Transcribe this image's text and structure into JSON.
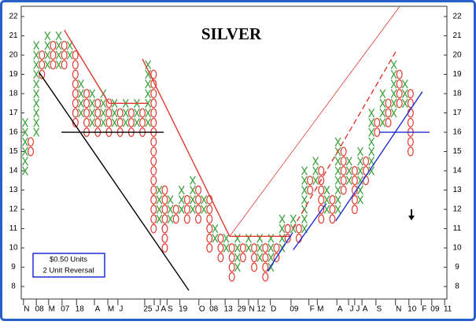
{
  "chart_data": {
    "type": "point-and-figure",
    "title": "SILVER",
    "box_size_label": "$0.50 Units",
    "reversal_label": "2 Unit Reversal",
    "box_size": 0.5,
    "x_color": "#3fa33f",
    "o_color": "#e0392f",
    "xlim": [
      -0.7,
      75.5
    ],
    "ylim": [
      7.35,
      22.53
    ],
    "yticks": [
      8,
      9,
      10,
      11,
      12,
      13,
      14,
      15,
      16,
      17,
      18,
      19,
      20,
      21,
      22
    ],
    "xticks": [
      {
        "value": -0.3,
        "label": "N"
      },
      {
        "value": 2,
        "label": "08"
      },
      {
        "value": 4.2,
        "label": "M"
      },
      {
        "value": 6.6,
        "label": "07"
      },
      {
        "value": 9.2,
        "label": "18"
      },
      {
        "value": 12.4,
        "label": "A"
      },
      {
        "value": 14.8,
        "label": "M"
      },
      {
        "value": 16.6,
        "label": "J"
      },
      {
        "value": 21.4,
        "label": "25"
      },
      {
        "value": 23.1,
        "label": "J"
      },
      {
        "value": 24.2,
        "label": "A"
      },
      {
        "value": 25.4,
        "label": "S"
      },
      {
        "value": 27.7,
        "label": "19"
      },
      {
        "value": 31.1,
        "label": "O"
      },
      {
        "value": 33.2,
        "label": "08"
      },
      {
        "value": 35.8,
        "label": "13"
      },
      {
        "value": 38.2,
        "label": "29"
      },
      {
        "value": 40,
        "label": "N"
      },
      {
        "value": 41.7,
        "label": "12"
      },
      {
        "value": 43.9,
        "label": "D"
      },
      {
        "value": 47.6,
        "label": "09"
      },
      {
        "value": 50.8,
        "label": "F"
      },
      {
        "value": 52.3,
        "label": "M"
      },
      {
        "value": 55.8,
        "label": "A"
      },
      {
        "value": 57.9,
        "label": "J"
      },
      {
        "value": 59,
        "label": "J"
      },
      {
        "value": 60.3,
        "label": "A"
      },
      {
        "value": 62.8,
        "label": "S"
      },
      {
        "value": 66.3,
        "label": "N"
      },
      {
        "value": 68.7,
        "label": "10"
      },
      {
        "value": 70.9,
        "label": "F"
      },
      {
        "value": 72.8,
        "label": "09"
      },
      {
        "value": 75.1,
        "label": "11"
      }
    ],
    "columns": [
      {
        "kind": "X",
        "low": 14,
        "high": 16.5
      },
      {
        "kind": "O",
        "low": 15,
        "high": 15.5
      },
      {
        "kind": "X",
        "low": 16,
        "high": 20.5
      },
      {
        "kind": "O",
        "low": 19,
        "high": 20
      },
      {
        "kind": "X",
        "low": 19.5,
        "high": 21
      },
      {
        "kind": "O",
        "low": 19.5,
        "high": 20.5
      },
      {
        "kind": "X",
        "low": 19.5,
        "high": 21
      },
      {
        "kind": "O",
        "low": 19.5,
        "high": 20.5
      },
      {
        "kind": "X",
        "low": 20,
        "high": 20.5
      },
      {
        "kind": "O",
        "low": 16.5,
        "high": 20
      },
      {
        "kind": "X",
        "low": 17,
        "high": 18.5
      },
      {
        "kind": "O",
        "low": 16,
        "high": 18
      },
      {
        "kind": "X",
        "low": 16.5,
        "high": 18
      },
      {
        "kind": "O",
        "low": 16,
        "high": 17.5
      },
      {
        "kind": "X",
        "low": 16.5,
        "high": 18
      },
      {
        "kind": "O",
        "low": 16,
        "high": 17.5
      },
      {
        "kind": "X",
        "low": 16.5,
        "high": 17.5
      },
      {
        "kind": "O",
        "low": 16,
        "high": 17
      },
      {
        "kind": "X",
        "low": 16.5,
        "high": 17.5
      },
      {
        "kind": "O",
        "low": 16,
        "high": 17
      },
      {
        "kind": "X",
        "low": 16.5,
        "high": 17.5
      },
      {
        "kind": "O",
        "low": 16,
        "high": 17
      },
      {
        "kind": "X",
        "low": 16.5,
        "high": 19.5
      },
      {
        "kind": "O",
        "low": 11,
        "high": 19
      },
      {
        "kind": "X",
        "low": 11.5,
        "high": 13
      },
      {
        "kind": "O",
        "low": 10,
        "high": 13
      },
      {
        "kind": "X",
        "low": 11.5,
        "high": 12.5
      },
      {
        "kind": "O",
        "low": 11.5,
        "high": 12
      },
      {
        "kind": "X",
        "low": 12,
        "high": 13
      },
      {
        "kind": "O",
        "low": 11.5,
        "high": 12.5
      },
      {
        "kind": "X",
        "low": 12,
        "high": 13.5
      },
      {
        "kind": "O",
        "low": 11.5,
        "high": 13
      },
      {
        "kind": "X",
        "low": 12,
        "high": 12.5
      },
      {
        "kind": "O",
        "low": 10,
        "high": 12.5
      },
      {
        "kind": "X",
        "low": 10.5,
        "high": 11
      },
      {
        "kind": "O",
        "low": 9.5,
        "high": 10.5
      },
      {
        "kind": "X",
        "low": 10,
        "high": 10.5
      },
      {
        "kind": "O",
        "low": 8.5,
        "high": 10
      },
      {
        "kind": "X",
        "low": 9,
        "high": 10.5
      },
      {
        "kind": "O",
        "low": 9.5,
        "high": 10
      },
      {
        "kind": "X",
        "low": 10,
        "high": 10.5
      },
      {
        "kind": "O",
        "low": 9,
        "high": 10
      },
      {
        "kind": "X",
        "low": 9.5,
        "high": 10.5
      },
      {
        "kind": "O",
        "low": 8.5,
        "high": 10
      },
      {
        "kind": "X",
        "low": 9,
        "high": 10.5
      },
      {
        "kind": "O",
        "low": 9.5,
        "high": 10
      },
      {
        "kind": "X",
        "low": 10,
        "high": 11.5
      },
      {
        "kind": "O",
        "low": 10.5,
        "high": 11
      },
      {
        "kind": "X",
        "low": 11,
        "high": 11.5
      },
      {
        "kind": "O",
        "low": 10.5,
        "high": 11
      },
      {
        "kind": "X",
        "low": 11,
        "high": 14
      },
      {
        "kind": "O",
        "low": 13,
        "high": 13.5
      },
      {
        "kind": "X",
        "low": 13.5,
        "high": 14.5
      },
      {
        "kind": "O",
        "low": 11.5,
        "high": 14
      },
      {
        "kind": "X",
        "low": 12,
        "high": 13
      },
      {
        "kind": "O",
        "low": 11.5,
        "high": 12.5
      },
      {
        "kind": "X",
        "low": 12,
        "high": 15.5
      },
      {
        "kind": "O",
        "low": 13,
        "high": 15
      },
      {
        "kind": "X",
        "low": 13.5,
        "high": 14.5
      },
      {
        "kind": "O",
        "low": 12,
        "high": 14
      },
      {
        "kind": "X",
        "low": 12.5,
        "high": 15
      },
      {
        "kind": "O",
        "low": 13.5,
        "high": 14.5
      },
      {
        "kind": "X",
        "low": 14,
        "high": 17
      },
      {
        "kind": "O",
        "low": 16,
        "high": 16.5
      },
      {
        "kind": "X",
        "low": 16.5,
        "high": 18
      },
      {
        "kind": "O",
        "low": 16.5,
        "high": 17.5
      },
      {
        "kind": "X",
        "low": 17,
        "high": 19.5
      },
      {
        "kind": "O",
        "low": 17.5,
        "high": 19
      },
      {
        "kind": "X",
        "low": 17.5,
        "high": 18.5
      },
      {
        "kind": "O",
        "low": 15,
        "high": 18
      }
    ],
    "trendlines": [
      {
        "color": "#e0392f",
        "x": [
          7,
          15
        ],
        "y": [
          21.3,
          17.5
        ]
      },
      {
        "color": "#e0392f",
        "x": [
          15,
          22
        ],
        "y": [
          17.5,
          17.5
        ]
      },
      {
        "color": "#000000",
        "x": [
          2.5,
          29.3
        ],
        "y": [
          19.1,
          7.8
        ]
      },
      {
        "color": "#000000",
        "x": [
          6.5,
          24.8
        ],
        "y": [
          16,
          16
        ]
      },
      {
        "color": "#e0392f",
        "x": [
          21,
          36.6
        ],
        "y": [
          19.8,
          10.6
        ]
      },
      {
        "color": "#e0392f",
        "x": [
          36.6,
          47.6
        ],
        "y": [
          10.6,
          10.6
        ]
      },
      {
        "color": "#e0392f",
        "x": [
          36.6,
          67
        ],
        "y": [
          10.6,
          22.5
        ],
        "width": 0.8
      },
      {
        "color": "#e0392f",
        "x": [
          47.9,
          66.6
        ],
        "y": [
          11,
          20.3
        ],
        "dashed": true
      },
      {
        "color": "#1f2fd0",
        "x": [
          43.4,
          47.9
        ],
        "y": [
          8.8,
          10.8
        ]
      },
      {
        "color": "#1f2fd0",
        "x": [
          48,
          53.9
        ],
        "y": [
          9.9,
          12.3
        ]
      },
      {
        "color": "#1f2fd0",
        "x": [
          55.6,
          71.1
        ],
        "y": [
          11.4,
          18.1
        ]
      },
      {
        "color": "#1f2fd0",
        "x": [
          63.4,
          72.4
        ],
        "y": [
          16,
          16
        ]
      }
    ]
  }
}
